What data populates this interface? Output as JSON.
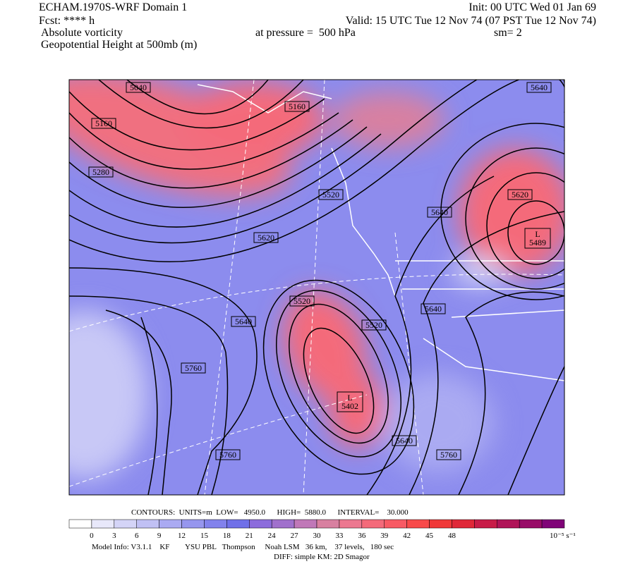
{
  "header": {
    "title": "ECHAM.1970S-WRF Domain 1",
    "fcst": "Fcst: **** h",
    "field1": "Absolute vorticity",
    "field2": "Geopotential Height at 500mb (m)",
    "init": "Init: 00 UTC Wed 01 Jan 69",
    "valid": "Valid: 15 UTC Tue 12 Nov 74 (07 PST Tue 12 Nov 74)",
    "pressure": "at pressure =  500 hPa",
    "sm": "sm= 2"
  },
  "contour_labels": [
    "5040",
    "5160",
    "5280",
    "5160",
    "5520",
    "5620",
    "5640",
    "5620",
    "5640",
    "5520",
    "5640",
    "5520",
    "5640",
    "5760",
    "5760",
    "5640",
    "5760"
  ],
  "lows": [
    {
      "symbol": "L",
      "value": "5489"
    },
    {
      "symbol": "L",
      "value": "5402"
    }
  ],
  "contours_info": "CONTOURS:  UNITS=m  LOW=   4950.0      HIGH=  5880.0      INTERVAL=    30.000",
  "colorbar": {
    "ticks": [
      0,
      3,
      6,
      9,
      12,
      15,
      18,
      21,
      24,
      27,
      30,
      33,
      36,
      39,
      42,
      45,
      48
    ],
    "unit": "10⁻⁵ s⁻¹",
    "colors": [
      "#ffffff",
      "#e8e8fa",
      "#d4d4f7",
      "#c0c0f4",
      "#aaaaf2",
      "#9696ee",
      "#8282ec",
      "#7070e8",
      "#8c6cdc",
      "#a070cc",
      "#c078b8",
      "#d880a0",
      "#ec7890",
      "#f46a7a",
      "#f85a64",
      "#f84a4a",
      "#f03838",
      "#e02838",
      "#c81c48",
      "#b01458",
      "#980c68",
      "#800478"
    ]
  },
  "footer": [
    "Model Info: V3.1.1    KF        YSU PBL   Thompson     Noah LSM   36 km,    37 levels,   180 sec",
    "DIFF: simple KM: 2D Smagor"
  ]
}
